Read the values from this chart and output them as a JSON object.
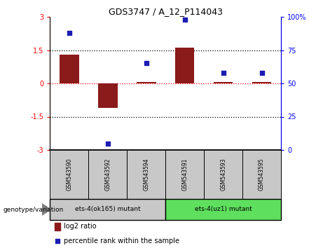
{
  "title": "GDS3747 / A_12_P114043",
  "samples": [
    "GSM543590",
    "GSM543592",
    "GSM543594",
    "GSM543591",
    "GSM543593",
    "GSM543595"
  ],
  "log2_ratio": [
    1.3,
    -1.1,
    0.05,
    1.6,
    0.05,
    0.05
  ],
  "percentile_rank": [
    88,
    5,
    65,
    98,
    58,
    58
  ],
  "ylim_left": [
    -3,
    3
  ],
  "ylim_right": [
    0,
    100
  ],
  "yticks_left": [
    -3,
    -1.5,
    0,
    1.5,
    3
  ],
  "ytick_labels_left": [
    "-3",
    "-1.5",
    "0",
    "1.5",
    "3"
  ],
  "yticks_right": [
    0,
    25,
    50,
    75,
    100
  ],
  "ytick_labels_right": [
    "0",
    "25",
    "50",
    "75",
    "100%"
  ],
  "bar_color": "#8B1A1A",
  "dot_color": "#1C1CB4",
  "group1_label": "ets-4(ok165) mutant",
  "group2_label": "ets-4(uz1) mutant",
  "group1_samples": [
    "GSM543590",
    "GSM543592",
    "GSM543594"
  ],
  "group2_samples": [
    "GSM543591",
    "GSM543593",
    "GSM543595"
  ],
  "genotype_label": "genotype/variation",
  "legend_bar_label": "log2 ratio",
  "legend_dot_label": "percentile rank within the sample",
  "bg_color_sample": "#c8c8c8",
  "bg_color_group2": "#5EE05E",
  "bg_color_group1_box": "#c8c8c8",
  "fig_width": 4.61,
  "fig_height": 3.54,
  "dpi": 100
}
